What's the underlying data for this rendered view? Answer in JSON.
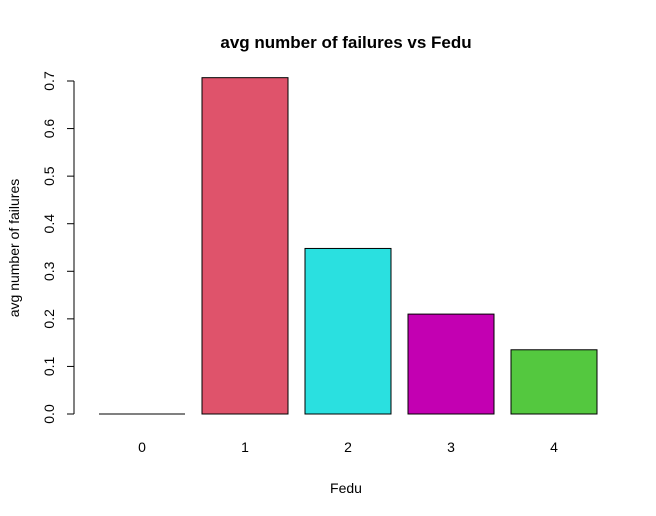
{
  "chart_data": {
    "type": "bar",
    "title": "avg number of failures vs Fedu",
    "xlabel": "Fedu",
    "ylabel": "avg number of failures",
    "categories": [
      "0",
      "1",
      "2",
      "3",
      "4"
    ],
    "values": [
      0.0,
      0.707,
      0.348,
      0.21,
      0.135
    ],
    "colors": [
      "#000000",
      "#DF536B",
      "#2AE0E0",
      "#C300B2",
      "#54C83F"
    ],
    "ylim": [
      0,
      0.7
    ],
    "yticks": [
      "0.0",
      "0.1",
      "0.2",
      "0.3",
      "0.4",
      "0.5",
      "0.6",
      "0.7"
    ],
    "grid": false,
    "legend": "none"
  }
}
